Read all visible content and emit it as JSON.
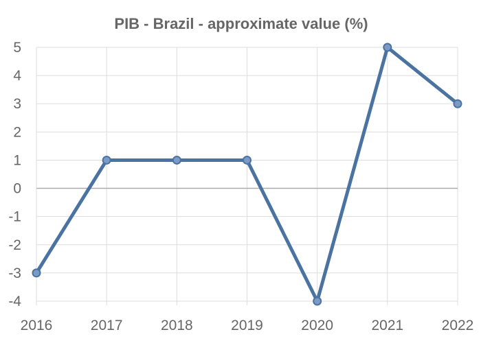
{
  "chart_data": {
    "type": "line",
    "title": "PIB - Brazil - approximate value (%)",
    "x": [
      "2016",
      "2017",
      "2018",
      "2019",
      "2020",
      "2021",
      "2022"
    ],
    "series": [
      {
        "values": [
          -3,
          1,
          1,
          1,
          -4,
          5,
          3
        ]
      }
    ],
    "y_ticks": [
      "-4",
      "-3",
      "-2",
      "-1",
      "0",
      "1",
      "2",
      "3",
      "4",
      "5"
    ],
    "ylim": [
      -4,
      5
    ],
    "grid": true,
    "legend": "none",
    "colors": {
      "line": "#4a73a1",
      "marker_fill": "#7b9bc6",
      "grid": "#dddddd",
      "zero_line": "#aaaaaa",
      "text": "#666666"
    }
  }
}
